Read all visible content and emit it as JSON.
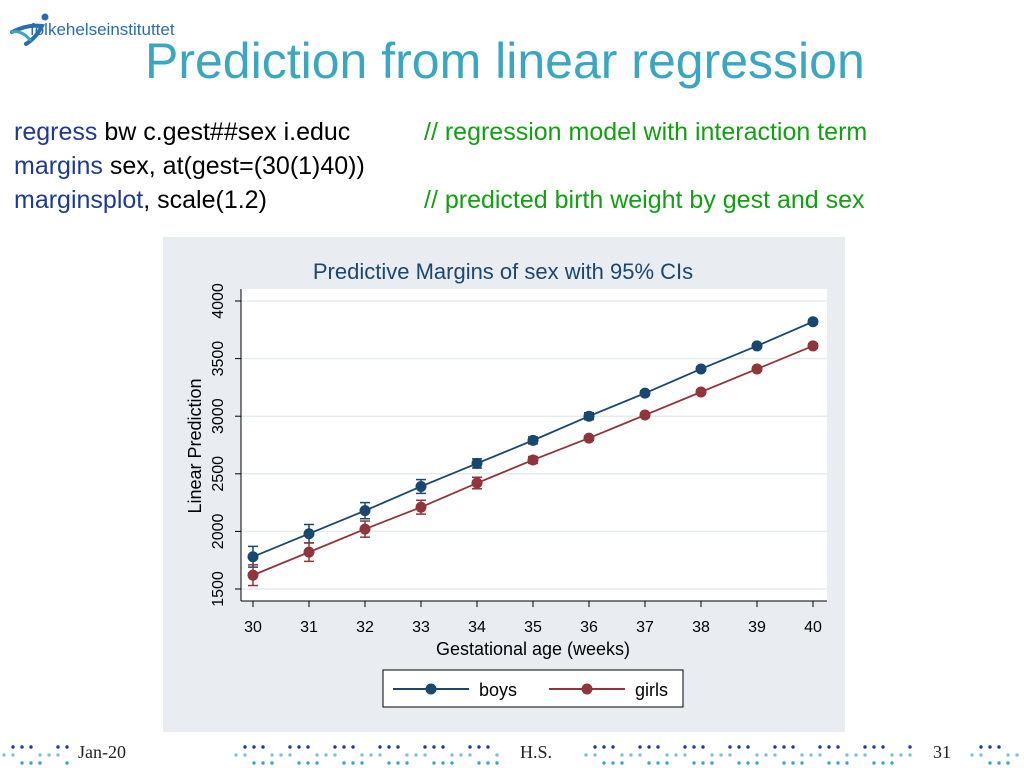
{
  "logo": {
    "text": "folkehelseinstituttet"
  },
  "slide": {
    "title": "Prediction from linear regression"
  },
  "code": {
    "line1": {
      "cmd": "regress",
      "args": " bw c.gest##sex i.educ",
      "comment": "// regression model with interaction term"
    },
    "line2": {
      "cmd": "margins",
      "args": " sex, at(gest=(30(1)40))"
    },
    "line3": {
      "cmd": "marginsplot",
      "args": ", scale(1.2)",
      "comment": "// predicted birth weight by gest and sex"
    }
  },
  "footer": {
    "date": "Jan-20",
    "author": "H.S.",
    "page": "31"
  },
  "colors": {
    "boys": "#1a476f",
    "girls": "#90353b",
    "panel": "#e9edf2",
    "title": "#3aa6c2"
  },
  "chart_data": {
    "type": "line",
    "title": "Predictive Margins of sex with 95% CIs",
    "xlabel": "Gestational age (weeks)",
    "ylabel": "Linear Prediction",
    "x": [
      30,
      31,
      32,
      33,
      34,
      35,
      36,
      37,
      38,
      39,
      40
    ],
    "xlim": [
      30,
      40
    ],
    "ylim": [
      1500,
      4000
    ],
    "yticks": [
      1500,
      2000,
      2500,
      3000,
      3500,
      4000
    ],
    "grid": true,
    "legend": "bottom",
    "series": [
      {
        "name": "boys",
        "color": "#1a476f",
        "values": [
          1780,
          1980,
          2180,
          2390,
          2590,
          2790,
          3000,
          3200,
          3410,
          3610,
          3820
        ],
        "ci_low": [
          1690,
          1900,
          2110,
          2330,
          2550,
          2760,
          2970,
          3180,
          3390,
          3590,
          3800
        ],
        "ci_high": [
          1870,
          2060,
          2250,
          2450,
          2630,
          2820,
          3030,
          3220,
          3430,
          3630,
          3840
        ]
      },
      {
        "name": "girls",
        "color": "#90353b",
        "values": [
          1620,
          1820,
          2020,
          2210,
          2420,
          2620,
          2810,
          3010,
          3210,
          3410,
          3610
        ],
        "ci_low": [
          1530,
          1740,
          1950,
          2150,
          2370,
          2590,
          2790,
          2990,
          3190,
          3390,
          3590
        ],
        "ci_high": [
          1710,
          1900,
          2090,
          2270,
          2470,
          2650,
          2830,
          3030,
          3230,
          3430,
          3630
        ]
      }
    ]
  }
}
